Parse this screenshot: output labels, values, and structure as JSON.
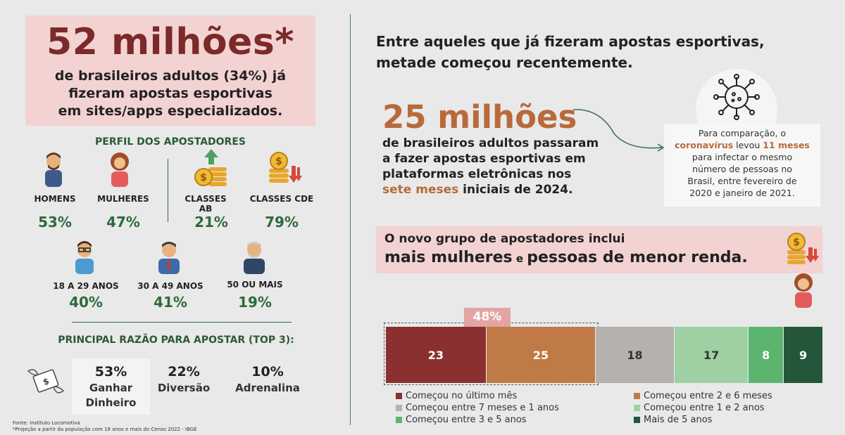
{
  "left": {
    "hero_big": "52 milhões*",
    "hero_sub_1": "de brasileiros adultos (34%) já",
    "hero_sub_2": "fizeram apostas esportivas",
    "hero_sub_3": "em sites/apps especializados.",
    "profile_title": "PERFIL DOS APOSTADORES",
    "profile": [
      {
        "label": "HOMENS",
        "pct": "53%"
      },
      {
        "label": "MULHERES",
        "pct": "47%"
      },
      {
        "label": "CLASSES AB",
        "pct": "21%"
      },
      {
        "label": "CLASSES CDE",
        "pct": "79%"
      },
      {
        "label": "18 A 29 ANOS",
        "pct": "40%"
      },
      {
        "label": "30 A 49 ANOS",
        "pct": "41%"
      },
      {
        "label": "50 OU MAIS",
        "pct": "19%"
      }
    ],
    "reason_title": "PRINCIPAL RAZÃO PARA APOSTAR (TOP 3):",
    "reasons": [
      {
        "pct": "53%",
        "label_1": "Ganhar",
        "label_2": "Dinheiro"
      },
      {
        "pct": "22%",
        "label_1": "Diversão"
      },
      {
        "pct": "10%",
        "label_1": "Adrenalina"
      }
    ],
    "footnote_1": "Fonte: Instituto Locomotiva",
    "footnote_2": "*Projeção a partir da população com 18 anos e mais do Censo 2022 - IBGE"
  },
  "right": {
    "head_1": "Entre aqueles que já fizeram apostas esportivas,",
    "head_2": "metade começou recentemente.",
    "big": "25 milhões",
    "sub_1": "de brasileiros adultos passaram",
    "sub_2": "a fazer apostas esportivas em",
    "sub_3": "plataformas eletrônicas nos",
    "sub_hl": "sete meses",
    "sub_4": " iniciais de 2024.",
    "compare_1": "Para comparação, o",
    "compare_hl1": "coronavírus",
    "compare_mid": " levou ",
    "compare_hl2": "11 meses",
    "compare_2": "para infectar o mesmo",
    "compare_3": "número de pessoas no",
    "compare_4": "Brasil, entre fevereiro de",
    "compare_5": "2020 e janeiro de 2021.",
    "new_1": "O novo grupo de apostadores inclui",
    "new_2a": "mais mulheres",
    "new_2b": " e ",
    "new_2c": "pessoas de menor renda."
  },
  "chart_data": {
    "type": "bar",
    "stacked": true,
    "orientation": "horizontal",
    "highlight_label": "48%",
    "series": [
      {
        "name": "Começou no último mês",
        "value": 23,
        "color": "#8b3030"
      },
      {
        "name": "Começou entre 2 e 6 meses",
        "value": 25,
        "color": "#c07a45"
      },
      {
        "name": "Começou entre 7 meses e 1 anos",
        "value": 18,
        "color": "#b4b1ae"
      },
      {
        "name": "Começou entre 1 e 2 anos",
        "value": 17,
        "color": "#9ed0a3"
      },
      {
        "name": "Começou entre 3 e 5 anos",
        "value": 8,
        "color": "#5cb56f"
      },
      {
        "name": "Mais de 5 anos",
        "value": 9,
        "color": "#24573a"
      }
    ]
  }
}
